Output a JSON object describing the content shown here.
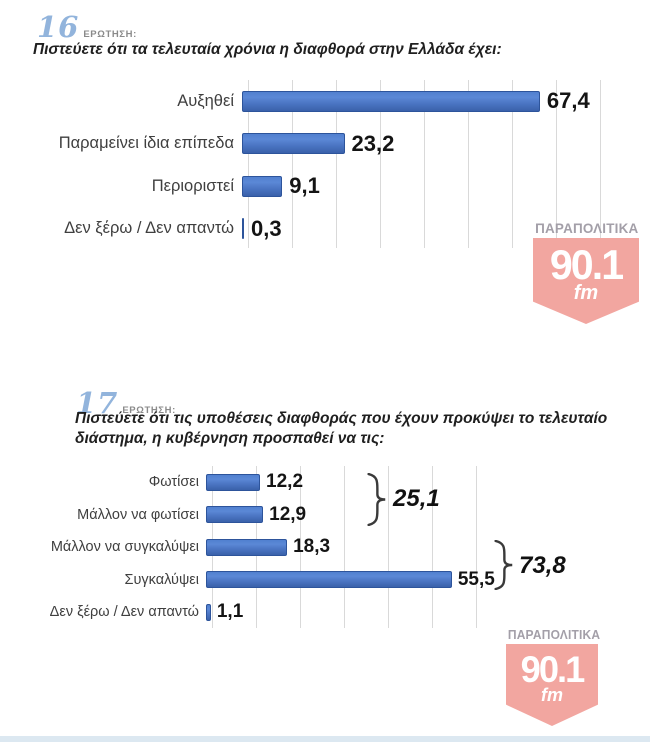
{
  "brand_logo": {
    "brand": "ΠΑΡΑΠΟΛΙΤΙΚΑ",
    "frequency": "90.1",
    "band": "fm",
    "badge_color": "#f2a6a0",
    "brand_text_color": "#a39fa8"
  },
  "questions": [
    {
      "number": "16",
      "label": "ΕΡΩΤΗΣΗ:",
      "text": "Πιστεύετε ότι τα τελευταία χρόνια η διαφθορά στην Ελλάδα έχει:"
    },
    {
      "number": "17",
      "label": "ΕΡΩΤΗΣΗ:",
      "text": "Πιστεύετε ότι τις υποθέσεις διαφθοράς που έχουν προκύψει το τελευταίο διάστημα, η κυβέρνηση προσπαθεί να τις:"
    }
  ],
  "chart_data": [
    {
      "type": "bar",
      "orientation": "horizontal",
      "title": "Πιστεύετε ότι τα τελευταία χρόνια η διαφθορά στην Ελλάδα έχει:",
      "categories": [
        "Αυξηθεί",
        "Παραμείνει ίδια επίπεδα",
        "Περιοριστεί",
        "Δεν ξέρω / Δεν απαντώ"
      ],
      "values": [
        67.4,
        23.2,
        9.1,
        0.3
      ],
      "value_labels": [
        "67,4",
        "23,2",
        "9,1",
        "0,3"
      ],
      "xlim": [
        0,
        80
      ],
      "gridline_step": 10,
      "grid": "vertical",
      "bar_color": "#4472c4",
      "legend": "none"
    },
    {
      "type": "bar",
      "orientation": "horizontal",
      "title": "Πιστεύετε ότι τις υποθέσεις διαφθοράς που έχουν προκύψει το τελευταίο διάστημα, η κυβέρνηση προσπαθεί να τις:",
      "categories": [
        "Φωτίσει",
        "Μάλλον να φωτίσει",
        "Μάλλον να συγκαλύψει",
        "Συγκαλύψει",
        "Δεν ξέρω / Δεν απαντώ"
      ],
      "values": [
        12.2,
        12.9,
        18.3,
        55.5,
        1.1
      ],
      "value_labels": [
        "12,2",
        "12,9",
        "18,3",
        "55,5",
        "1,1"
      ],
      "xlim": [
        0,
        60
      ],
      "gridline_step": 10,
      "grid": "vertical",
      "bar_color": "#4472c4",
      "legend": "none",
      "annotations": [
        {
          "label": "25,1",
          "value": 25.1,
          "groups": [
            "Φωτίσει",
            "Μάλλον να φωτίσει"
          ]
        },
        {
          "label": "73,8",
          "value": 73.8,
          "groups": [
            "Μάλλον να συγκαλύψει",
            "Συγκαλύψει"
          ]
        }
      ]
    }
  ]
}
